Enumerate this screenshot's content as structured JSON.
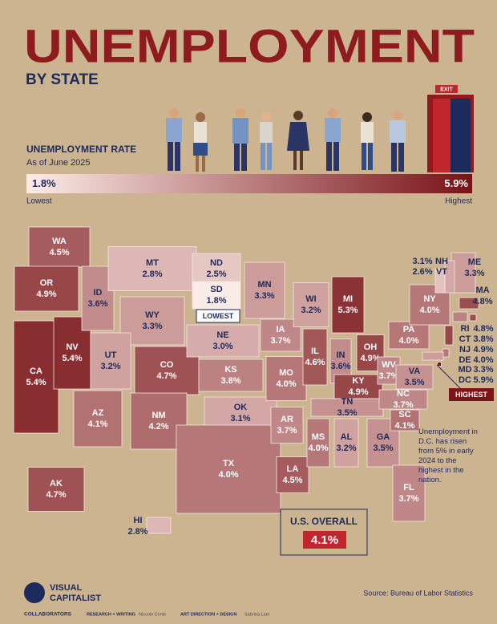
{
  "header": {
    "title": "UNEMPLOYMENT",
    "subtitle": "BY STATE",
    "exit": "EXIT"
  },
  "legend": {
    "title": "UNEMPLOYMENT RATE",
    "subtitle": "As of June 2025",
    "low": {
      "value": 1.8,
      "label": "1.8%",
      "caption": "Lowest"
    },
    "high": {
      "value": 5.9,
      "label": "5.9%",
      "caption": "Highest"
    }
  },
  "states": [
    {
      "abbr": "WA",
      "value": 4.5,
      "label": "4.5%"
    },
    {
      "abbr": "OR",
      "value": 4.9,
      "label": "4.9%"
    },
    {
      "abbr": "CA",
      "value": 5.4,
      "label": "5.4%"
    },
    {
      "abbr": "NV",
      "value": 5.4,
      "label": "5.4%"
    },
    {
      "abbr": "ID",
      "value": 3.6,
      "label": "3.6%"
    },
    {
      "abbr": "MT",
      "value": 2.8,
      "label": "2.8%"
    },
    {
      "abbr": "WY",
      "value": 3.3,
      "label": "3.3%"
    },
    {
      "abbr": "UT",
      "value": 3.2,
      "label": "3.2%"
    },
    {
      "abbr": "CO",
      "value": 4.7,
      "label": "4.7%"
    },
    {
      "abbr": "AZ",
      "value": 4.1,
      "label": "4.1%"
    },
    {
      "abbr": "NM",
      "value": 4.2,
      "label": "4.2%"
    },
    {
      "abbr": "ND",
      "value": 2.5,
      "label": "2.5%"
    },
    {
      "abbr": "SD",
      "value": 1.8,
      "label": "1.8%"
    },
    {
      "abbr": "NE",
      "value": 3.0,
      "label": "3.0%"
    },
    {
      "abbr": "KS",
      "value": 3.8,
      "label": "3.8%"
    },
    {
      "abbr": "OK",
      "value": 3.1,
      "label": "3.1%"
    },
    {
      "abbr": "TX",
      "value": 4.0,
      "label": "4.0%"
    },
    {
      "abbr": "MN",
      "value": 3.3,
      "label": "3.3%"
    },
    {
      "abbr": "IA",
      "value": 3.7,
      "label": "3.7%"
    },
    {
      "abbr": "MO",
      "value": 4.0,
      "label": "4.0%"
    },
    {
      "abbr": "AR",
      "value": 3.7,
      "label": "3.7%"
    },
    {
      "abbr": "LA",
      "value": 4.5,
      "label": "4.5%"
    },
    {
      "abbr": "WI",
      "value": 3.2,
      "label": "3.2%"
    },
    {
      "abbr": "IL",
      "value": 4.6,
      "label": "4.6%"
    },
    {
      "abbr": "MS",
      "value": 4.0,
      "label": "4.0%"
    },
    {
      "abbr": "MI",
      "value": 5.3,
      "label": "5.3%"
    },
    {
      "abbr": "IN",
      "value": 3.6,
      "label": "3.6%"
    },
    {
      "abbr": "KY",
      "value": 4.9,
      "label": "4.9%"
    },
    {
      "abbr": "TN",
      "value": 3.5,
      "label": "3.5%"
    },
    {
      "abbr": "AL",
      "value": 3.2,
      "label": "3.2%"
    },
    {
      "abbr": "GA",
      "value": 3.5,
      "label": "3.5%"
    },
    {
      "abbr": "FL",
      "value": 3.7,
      "label": "3.7%"
    },
    {
      "abbr": "OH",
      "value": 4.9,
      "label": "4.9%"
    },
    {
      "abbr": "WV",
      "value": 3.7,
      "label": "3.7%"
    },
    {
      "abbr": "VA",
      "value": 3.5,
      "label": "3.5%"
    },
    {
      "abbr": "NC",
      "value": 3.7,
      "label": "3.7%"
    },
    {
      "abbr": "SC",
      "value": 4.1,
      "label": "4.1%"
    },
    {
      "abbr": "PA",
      "value": 4.0,
      "label": "4.0%"
    },
    {
      "abbr": "NY",
      "value": 4.0,
      "label": "4.0%"
    },
    {
      "abbr": "ME",
      "value": 3.3,
      "label": "3.3%"
    },
    {
      "abbr": "NH",
      "value": 3.1,
      "label": "3.1%"
    },
    {
      "abbr": "VT",
      "value": 2.6,
      "label": "2.6%"
    },
    {
      "abbr": "MA",
      "value": 4.8,
      "label": "4.8%"
    },
    {
      "abbr": "RI",
      "value": 4.8,
      "label": "4.8%"
    },
    {
      "abbr": "CT",
      "value": 3.8,
      "label": "3.8%"
    },
    {
      "abbr": "NJ",
      "value": 4.9,
      "label": "4.9%"
    },
    {
      "abbr": "DE",
      "value": 4.0,
      "label": "4.0%"
    },
    {
      "abbr": "MD",
      "value": 3.3,
      "label": "3.3%"
    },
    {
      "abbr": "DC",
      "value": 5.9,
      "label": "5.9%"
    },
    {
      "abbr": "AK",
      "value": 4.7,
      "label": "4.7%"
    },
    {
      "abbr": "HI",
      "value": 2.8,
      "label": "2.8%"
    }
  ],
  "callouts": {
    "lowest": "LOWEST",
    "highest": "HIGHEST",
    "note": "Unemployment in D.C. has risen from 5% in early 2024 to the highest in the nation."
  },
  "overall": {
    "title": "U.S. OVERALL",
    "label": "4.1%"
  },
  "footer": {
    "brand_top": "VISUAL",
    "brand_bottom": "CAPITALIST",
    "source": "Source: Bureau of Labor Statistics",
    "collaborators": "COLLABORATORS",
    "research": "RESEARCH + WRITING",
    "researcher": "Niccolo Conte",
    "art": "ART DIRECTION + DESIGN",
    "designer": "Sabrina Lam"
  }
}
